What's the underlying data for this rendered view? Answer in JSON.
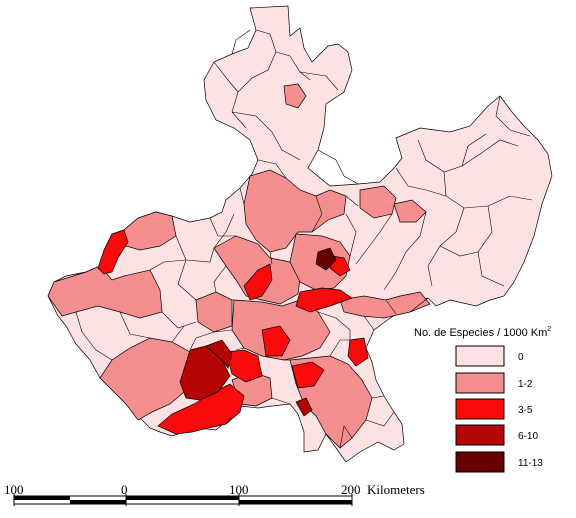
{
  "legend": {
    "title": "No. de Especies / 1000 Km",
    "title_sup": "2",
    "classes": [
      {
        "label": "0",
        "color": "#fde2e3"
      },
      {
        "label": "1-2",
        "color": "#f58e8f"
      },
      {
        "label": "3-5",
        "color": "#fa0a0a"
      },
      {
        "label": "6-10",
        "color": "#b40404"
      },
      {
        "label": "11-13",
        "color": "#690000"
      }
    ]
  },
  "scale_bar": {
    "ticks": [
      "100",
      "0",
      "100",
      "200"
    ],
    "unit": "Kilometers"
  },
  "map": {
    "outline_color": "#000000"
  }
}
